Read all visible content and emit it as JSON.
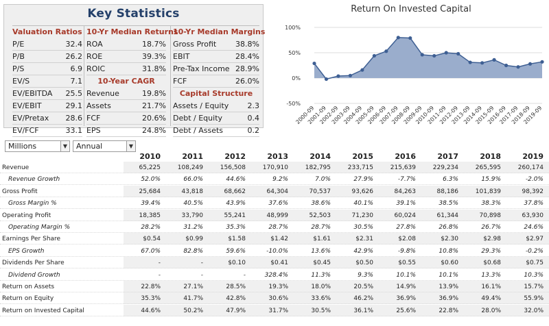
{
  "key_stats": {
    "title": "Key Statistics",
    "valuation": {
      "header": "Valuation Ratios",
      "rows": [
        {
          "label": "P/E",
          "value": "32.4"
        },
        {
          "label": "P/B",
          "value": "26.2"
        },
        {
          "label": "P/S",
          "value": "6.9"
        },
        {
          "label": "EV/S",
          "value": "7.1"
        },
        {
          "label": "EV/EBITDA",
          "value": "25.5"
        },
        {
          "label": "EV/EBIT",
          "value": "29.1"
        },
        {
          "label": "EV/Pretax",
          "value": "28.6"
        },
        {
          "label": "EV/FCF",
          "value": "33.1"
        }
      ]
    },
    "returns": {
      "header": "10-Yr Median Returns",
      "rows": [
        {
          "label": "ROA",
          "value": "18.7%"
        },
        {
          "label": "ROE",
          "value": "39.3%"
        },
        {
          "label": "ROIC",
          "value": "31.8%"
        }
      ]
    },
    "cagr": {
      "header": "10-Year CAGR",
      "rows": [
        {
          "label": "Revenue",
          "value": "19.8%"
        },
        {
          "label": "Assets",
          "value": "21.7%"
        },
        {
          "label": "FCF",
          "value": "20.6%"
        },
        {
          "label": "EPS",
          "value": "24.8%"
        }
      ]
    },
    "margins": {
      "header": "10-Yr Median Margins",
      "rows": [
        {
          "label": "Gross Profit",
          "value": "38.8%"
        },
        {
          "label": "EBIT",
          "value": "28.4%"
        },
        {
          "label": "Pre-Tax Income",
          "value": "28.9%"
        },
        {
          "label": "FCF",
          "value": "26.0%"
        }
      ]
    },
    "capital": {
      "header": "Capital Structure",
      "rows": [
        {
          "label": "Assets / Equity",
          "value": "2.3"
        },
        {
          "label": "Debt / Equity",
          "value": "0.4"
        },
        {
          "label": "Debt / Assets",
          "value": "0.2"
        }
      ]
    }
  },
  "controls": {
    "units": "Millions",
    "period": "Annual"
  },
  "chart_data": {
    "type": "area",
    "title": "Return On Invested Capital",
    "x": [
      "2000-09",
      "2001-09",
      "2002-09",
      "2003-09",
      "2004-09",
      "2005-09",
      "2006-09",
      "2007-09",
      "2008-09",
      "2009-09",
      "2010-09",
      "2011-09",
      "2012-09",
      "2013-09",
      "2014-09",
      "2015-09",
      "2016-09",
      "2017-09",
      "2018-09",
      "2019-09"
    ],
    "y": [
      29,
      -2,
      4,
      5,
      16,
      44,
      53,
      80,
      79,
      46,
      44,
      50,
      48,
      31,
      30,
      36,
      25,
      22,
      28,
      32
    ],
    "ylim": [
      -50,
      100
    ],
    "yticks": [
      -50,
      0,
      50,
      100
    ],
    "ytick_labels": [
      "-50%",
      "0%",
      "50%",
      "100%"
    ],
    "grid": true,
    "colors": {
      "fill": "#9aadcc",
      "line": "#3e5f93",
      "marker": "#3e5f93"
    }
  },
  "table": {
    "years": [
      "2010",
      "2011",
      "2012",
      "2013",
      "2014",
      "2015",
      "2016",
      "2017",
      "2018",
      "2019"
    ],
    "rows": [
      {
        "label": "Revenue",
        "sub": false,
        "values": [
          "65,225",
          "108,249",
          "156,508",
          "170,910",
          "182,795",
          "233,715",
          "215,639",
          "229,234",
          "265,595",
          "260,174"
        ]
      },
      {
        "label": "Revenue Growth",
        "sub": true,
        "values": [
          "52.0%",
          "66.0%",
          "44.6%",
          "9.2%",
          "7.0%",
          "27.9%",
          "-7.7%",
          "6.3%",
          "15.9%",
          "-2.0%"
        ]
      },
      {
        "label": "Gross Profit",
        "sub": false,
        "values": [
          "25,684",
          "43,818",
          "68,662",
          "64,304",
          "70,537",
          "93,626",
          "84,263",
          "88,186",
          "101,839",
          "98,392"
        ]
      },
      {
        "label": "Gross Margin %",
        "sub": true,
        "values": [
          "39.4%",
          "40.5%",
          "43.9%",
          "37.6%",
          "38.6%",
          "40.1%",
          "39.1%",
          "38.5%",
          "38.3%",
          "37.8%"
        ]
      },
      {
        "label": "Operating Profit",
        "sub": false,
        "values": [
          "18,385",
          "33,790",
          "55,241",
          "48,999",
          "52,503",
          "71,230",
          "60,024",
          "61,344",
          "70,898",
          "63,930"
        ]
      },
      {
        "label": "Operating Margin %",
        "sub": true,
        "values": [
          "28.2%",
          "31.2%",
          "35.3%",
          "28.7%",
          "28.7%",
          "30.5%",
          "27.8%",
          "26.8%",
          "26.7%",
          "24.6%"
        ]
      },
      {
        "label": "Earnings Per Share",
        "sub": false,
        "values": [
          "$0.54",
          "$0.99",
          "$1.58",
          "$1.42",
          "$1.61",
          "$2.31",
          "$2.08",
          "$2.30",
          "$2.98",
          "$2.97"
        ]
      },
      {
        "label": "EPS Growth",
        "sub": true,
        "values": [
          "67.0%",
          "82.8%",
          "59.6%",
          "-10.0%",
          "13.6%",
          "42.9%",
          "-9.8%",
          "10.8%",
          "29.3%",
          "-0.2%"
        ]
      },
      {
        "label": "Dividends Per Share",
        "sub": false,
        "values": [
          "-",
          "-",
          "$0.10",
          "$0.41",
          "$0.45",
          "$0.50",
          "$0.55",
          "$0.60",
          "$0.68",
          "$0.75"
        ]
      },
      {
        "label": "Dividend Growth",
        "sub": true,
        "values": [
          "-",
          "-",
          "-",
          "328.4%",
          "11.3%",
          "9.3%",
          "10.1%",
          "10.1%",
          "13.3%",
          "10.3%"
        ]
      },
      {
        "label": "Return on Assets",
        "sub": false,
        "values": [
          "22.8%",
          "27.1%",
          "28.5%",
          "19.3%",
          "18.0%",
          "20.5%",
          "14.9%",
          "13.9%",
          "16.1%",
          "15.7%"
        ]
      },
      {
        "label": "Return on Equity",
        "sub": false,
        "values": [
          "35.3%",
          "41.7%",
          "42.8%",
          "30.6%",
          "33.6%",
          "46.2%",
          "36.9%",
          "36.9%",
          "49.4%",
          "55.9%"
        ]
      },
      {
        "label": "Return on Invested Capital",
        "sub": false,
        "values": [
          "44.6%",
          "50.2%",
          "47.9%",
          "31.7%",
          "30.5%",
          "36.1%",
          "25.6%",
          "22.8%",
          "28.0%",
          "32.0%"
        ]
      }
    ]
  }
}
